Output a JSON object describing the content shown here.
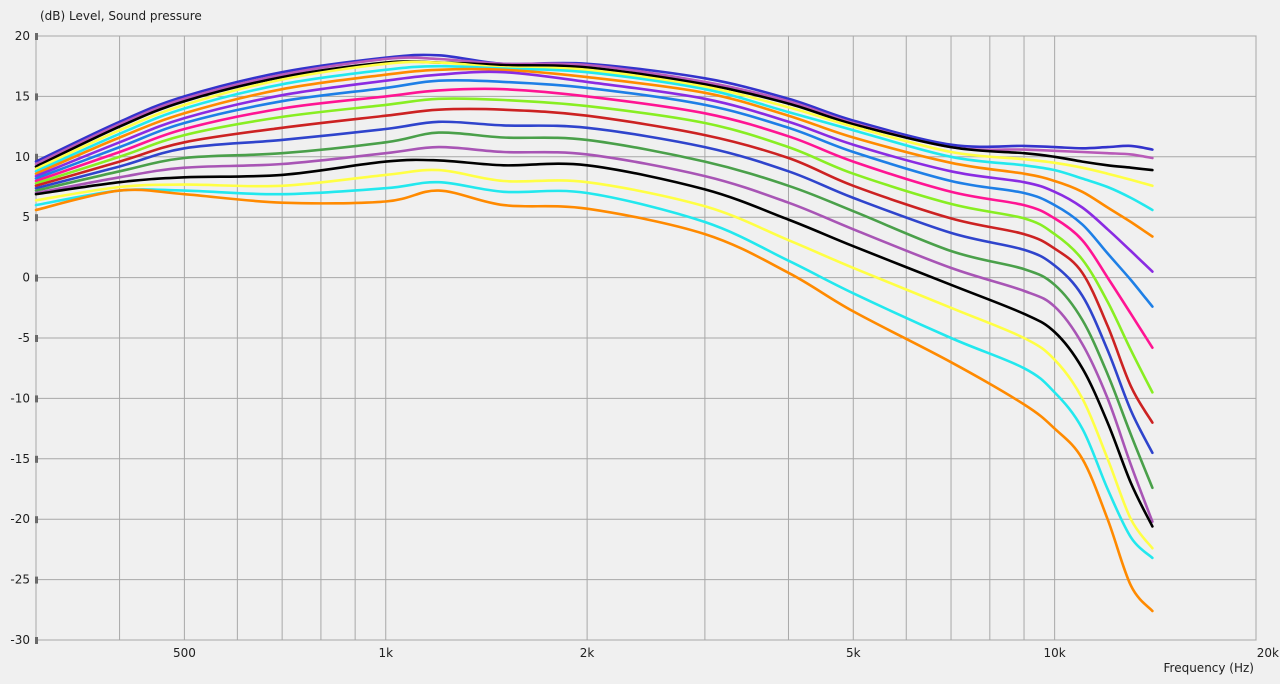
{
  "chart_data": {
    "type": "line",
    "ylabel": "(dB)  Level, Sound pressure",
    "xlabel": "Frequency  (Hz)",
    "x_scale": "log",
    "xlim": [
      300,
      20000
    ],
    "ylim": [
      -30,
      20
    ],
    "y_ticks": [
      20,
      15,
      10,
      5,
      0,
      -5,
      -10,
      -15,
      -20,
      -25,
      -30
    ],
    "y_tick_labels": [
      "20",
      "15",
      "10",
      "5",
      "0",
      "-5",
      "-10",
      "-15",
      "-20",
      "-25",
      "-30"
    ],
    "x_ticks": [
      500,
      1000,
      2000,
      5000,
      10000,
      20000
    ],
    "x_tick_labels": [
      "500",
      "1k",
      "2k",
      "5k",
      "10k",
      "20k"
    ],
    "x_grid": [
      300,
      400,
      500,
      600,
      700,
      800,
      900,
      1000,
      2000,
      3000,
      4000,
      5000,
      6000,
      7000,
      8000,
      9000,
      10000,
      20000
    ],
    "grid": true,
    "x": [
      300,
      400,
      500,
      700,
      1000,
      1200,
      1500,
      2000,
      3000,
      4000,
      5000,
      7000,
      9000,
      10000,
      11000,
      12000,
      13000,
      14000
    ],
    "series": [
      {
        "color": "#3333cc",
        "values": [
          9.6,
          12.9,
          15.0,
          17.0,
          18.2,
          18.4,
          17.7,
          17.7,
          16.5,
          14.8,
          13.0,
          11.0,
          10.9,
          10.8,
          10.7,
          10.8,
          10.9,
          10.6
        ]
      },
      {
        "color": "#b85ab8",
        "values": [
          9.4,
          12.7,
          14.8,
          16.8,
          18.1,
          18.1,
          17.7,
          17.6,
          16.2,
          14.6,
          12.8,
          10.8,
          10.6,
          10.5,
          10.4,
          10.3,
          10.2,
          9.9
        ]
      },
      {
        "color": "#000000",
        "values": [
          9.2,
          12.5,
          14.6,
          16.6,
          17.8,
          17.8,
          17.6,
          17.4,
          16.0,
          14.4,
          12.7,
          10.8,
          10.3,
          10.0,
          9.6,
          9.3,
          9.1,
          8.9
        ]
      },
      {
        "color": "#ffff44",
        "values": [
          9.0,
          12.2,
          14.3,
          16.4,
          17.7,
          17.8,
          17.4,
          17.2,
          15.8,
          14.1,
          12.5,
          10.4,
          9.8,
          9.5,
          9.1,
          8.6,
          8.1,
          7.6
        ]
      },
      {
        "color": "#22e8ee",
        "values": [
          8.8,
          11.9,
          14.0,
          16.0,
          17.2,
          17.5,
          17.3,
          17.0,
          15.6,
          13.7,
          12.2,
          10.0,
          9.3,
          8.9,
          8.2,
          7.5,
          6.6,
          5.6
        ]
      },
      {
        "color": "#ff8a00",
        "values": [
          8.6,
          11.6,
          13.6,
          15.6,
          16.8,
          17.2,
          17.2,
          16.6,
          15.3,
          13.4,
          11.6,
          9.5,
          8.6,
          8.0,
          7.1,
          5.8,
          4.6,
          3.4
        ]
      },
      {
        "color": "#8a2be2",
        "values": [
          8.4,
          11.2,
          13.2,
          15.1,
          16.3,
          16.8,
          17.0,
          16.2,
          14.8,
          12.9,
          11.0,
          8.8,
          7.9,
          7.1,
          5.8,
          4.0,
          2.2,
          0.5
        ]
      },
      {
        "color": "#1e7fe6",
        "values": [
          8.2,
          10.8,
          12.8,
          14.6,
          15.7,
          16.3,
          16.2,
          15.7,
          14.3,
          12.4,
          10.4,
          8.0,
          7.0,
          6.0,
          4.4,
          2.0,
          -0.2,
          -2.4
        ]
      },
      {
        "color": "#ff1493",
        "values": [
          8.0,
          10.4,
          12.3,
          14.0,
          15.0,
          15.5,
          15.6,
          15.0,
          13.6,
          11.7,
          9.6,
          7.1,
          6.0,
          4.9,
          3.1,
          0.0,
          -3.0,
          -5.8
        ]
      },
      {
        "color": "#88ee22",
        "values": [
          7.8,
          10.0,
          11.8,
          13.3,
          14.3,
          14.8,
          14.7,
          14.2,
          12.8,
          10.8,
          8.6,
          6.1,
          4.9,
          3.6,
          1.5,
          -2.0,
          -6.0,
          -9.5
        ]
      },
      {
        "color": "#cc2222",
        "values": [
          7.6,
          9.6,
          11.2,
          12.4,
          13.4,
          13.9,
          13.9,
          13.4,
          11.8,
          9.9,
          7.6,
          4.9,
          3.6,
          2.4,
          0.4,
          -4.0,
          -9.0,
          -12.0
        ]
      },
      {
        "color": "#2f44cc",
        "values": [
          7.4,
          9.2,
          10.7,
          11.4,
          12.3,
          12.9,
          12.6,
          12.4,
          10.8,
          8.8,
          6.6,
          3.7,
          2.3,
          1.0,
          -1.5,
          -6.0,
          -11.0,
          -14.5
        ]
      },
      {
        "color": "#4aa04a",
        "values": [
          7.2,
          8.8,
          9.9,
          10.3,
          11.2,
          12.0,
          11.6,
          11.4,
          9.6,
          7.6,
          5.5,
          2.2,
          0.7,
          -0.6,
          -3.5,
          -8.0,
          -13.0,
          -17.4
        ]
      },
      {
        "color": "#a855b5",
        "values": [
          7.0,
          8.3,
          9.1,
          9.4,
          10.3,
          10.8,
          10.4,
          10.2,
          8.4,
          6.2,
          4.0,
          0.8,
          -1.1,
          -2.4,
          -5.5,
          -10.0,
          -15.5,
          -20.2
        ]
      },
      {
        "color": "#000000",
        "values": [
          6.9,
          7.9,
          8.3,
          8.5,
          9.6,
          9.7,
          9.3,
          9.3,
          7.3,
          4.8,
          2.6,
          -0.6,
          -3.0,
          -4.5,
          -7.5,
          -12.0,
          -17.0,
          -20.6
        ]
      },
      {
        "color": "#ffff44",
        "values": [
          6.4,
          7.5,
          7.7,
          7.6,
          8.5,
          8.9,
          8.0,
          7.9,
          5.9,
          3.1,
          0.8,
          -2.5,
          -5.0,
          -6.8,
          -10.0,
          -15.0,
          -20.0,
          -22.4
        ]
      },
      {
        "color": "#22e8ee",
        "values": [
          6.0,
          7.2,
          7.2,
          6.9,
          7.4,
          7.9,
          7.1,
          7.0,
          4.6,
          1.4,
          -1.3,
          -5.0,
          -7.5,
          -9.5,
          -12.5,
          -17.5,
          -21.5,
          -23.2
        ]
      },
      {
        "color": "#ff8a00",
        "values": [
          5.6,
          7.2,
          6.9,
          6.2,
          6.3,
          7.2,
          6.0,
          5.7,
          3.6,
          0.4,
          -2.8,
          -7.0,
          -10.5,
          -12.5,
          -15.0,
          -20.0,
          -25.5,
          -27.6
        ]
      }
    ]
  }
}
